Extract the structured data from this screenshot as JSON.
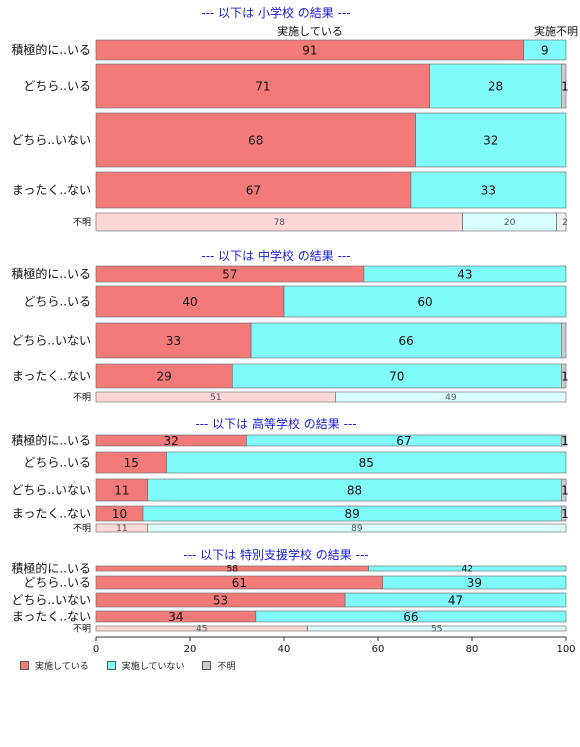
{
  "chart_data": {
    "type": "bar",
    "orientation": "horizontal-stacked",
    "xlim": [
      0,
      100
    ],
    "xticks": [
      "0",
      "20",
      "40",
      "60",
      "80",
      "100"
    ],
    "grid": false,
    "legend_placement": "bottom-left",
    "colors": {
      "s0": "#f47a7a",
      "s1": "#7ffbfb",
      "s2": "#cccccc"
    },
    "series_names": [
      "実施している",
      "実施していない",
      "不明"
    ],
    "col_labels": [
      "実施している",
      "",
      "実施不明"
    ],
    "panels": [
      {
        "title": "--- 以下は 小学校 の結果 ---",
        "rows": [
          {
            "label": "積極的に..いる",
            "values": [
              91,
              9,
              0
            ],
            "labels": [
              "91",
              "9",
              ""
            ]
          },
          {
            "label": "どちら..いる",
            "values": [
              71,
              28,
              1
            ],
            "labels": [
              "71",
              "28",
              "1"
            ]
          },
          {
            "label": "どちら..いない",
            "values": [
              68,
              32,
              0
            ],
            "labels": [
              "68",
              "32",
              ""
            ]
          },
          {
            "label": "まったく..ない",
            "values": [
              67,
              33,
              0
            ],
            "labels": [
              "67",
              "33",
              ""
            ]
          },
          {
            "label": "不明",
            "values": [
              78,
              20,
              2
            ],
            "labels": [
              "78",
              "20",
              "2"
            ],
            "unknown": true
          }
        ]
      },
      {
        "title": "--- 以下は 中学校 の結果 ---",
        "rows": [
          {
            "label": "積極的に..いる",
            "values": [
              57,
              43,
              0
            ],
            "labels": [
              "57",
              "43",
              ""
            ]
          },
          {
            "label": "どちら..いる",
            "values": [
              40,
              60,
              0
            ],
            "labels": [
              "40",
              "60",
              ""
            ]
          },
          {
            "label": "どちら..いない",
            "values": [
              33,
              66,
              1
            ],
            "labels": [
              "33",
              "66",
              ""
            ]
          },
          {
            "label": "まったく..ない",
            "values": [
              29,
              70,
              1
            ],
            "labels": [
              "29",
              "70",
              "1"
            ]
          },
          {
            "label": "不明",
            "values": [
              51,
              49,
              0
            ],
            "labels": [
              "51",
              "49",
              ""
            ],
            "unknown": true
          }
        ]
      },
      {
        "title": "--- 以下は 高等学校 の結果 ---",
        "rows": [
          {
            "label": "積極的に..いる",
            "values": [
              32,
              67,
              1
            ],
            "labels": [
              "32",
              "67",
              "1"
            ]
          },
          {
            "label": "どちら..いる",
            "values": [
              15,
              85,
              0
            ],
            "labels": [
              "15",
              "85",
              ""
            ]
          },
          {
            "label": "どちら..いない",
            "values": [
              11,
              88,
              1
            ],
            "labels": [
              "11",
              "88",
              "1"
            ]
          },
          {
            "label": "まったく..ない",
            "values": [
              10,
              89,
              1
            ],
            "labels": [
              "10",
              "89",
              "1"
            ]
          },
          {
            "label": "不明",
            "values": [
              11,
              89,
              0
            ],
            "labels": [
              "11",
              "89",
              ""
            ],
            "unknown": true
          }
        ]
      },
      {
        "title": "--- 以下は 特別支援学校 の結果 ---",
        "rows": [
          {
            "label": "積極的に..いる",
            "values": [
              58,
              42,
              0
            ],
            "labels": [
              "58",
              "42",
              ""
            ]
          },
          {
            "label": "どちら..いる",
            "values": [
              61,
              39,
              0
            ],
            "labels": [
              "61",
              "39",
              ""
            ]
          },
          {
            "label": "どちら..いない",
            "values": [
              53,
              47,
              0
            ],
            "labels": [
              "53",
              "47",
              ""
            ]
          },
          {
            "label": "まったく..ない",
            "values": [
              34,
              66,
              0
            ],
            "labels": [
              "34",
              "66",
              ""
            ]
          },
          {
            "label": "不明",
            "values": [
              45,
              55,
              0
            ],
            "labels": [
              "45",
              "55",
              ""
            ],
            "unknown": true
          }
        ]
      }
    ]
  },
  "legend": [
    {
      "label": "実施している",
      "color": "#f47a7a"
    },
    {
      "label": "実施していない",
      "color": "#7ffbfb"
    },
    {
      "label": "不明",
      "color": "#cccccc"
    }
  ]
}
